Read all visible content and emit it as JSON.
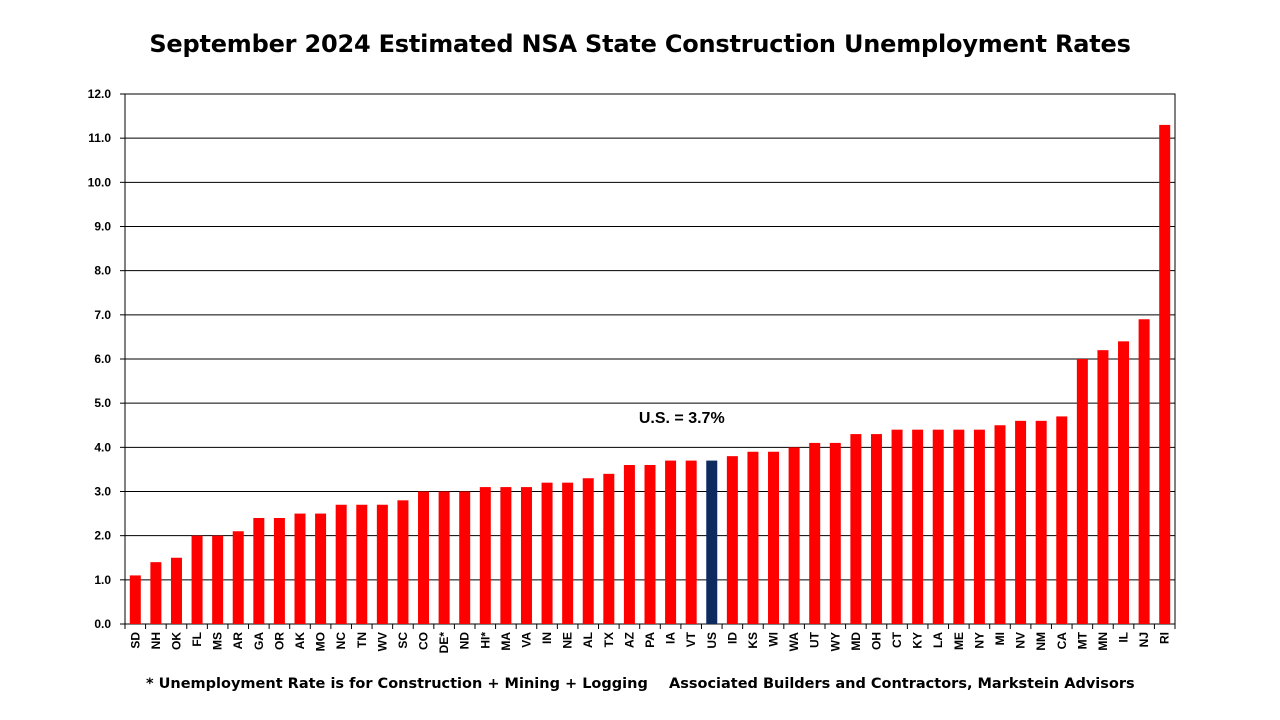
{
  "chart_data": {
    "type": "bar",
    "title": "September 2024 Estimated NSA State Construction Unemployment Rates",
    "categories": [
      "SD",
      "NH",
      "OK",
      "FL",
      "MS",
      "AR",
      "GA",
      "OR",
      "AK",
      "MO",
      "NC",
      "TN",
      "WV",
      "SC",
      "CO",
      "DE*",
      "ND",
      "HI*",
      "MA",
      "VA",
      "IN",
      "NE",
      "AL",
      "TX",
      "AZ",
      "PA",
      "IA",
      "VT",
      "US",
      "ID",
      "KS",
      "WI",
      "WA",
      "UT",
      "WY",
      "MD",
      "OH",
      "CT",
      "KY",
      "LA",
      "ME",
      "NY",
      "MI",
      "NV",
      "NM",
      "CA",
      "MT",
      "MN",
      "IL",
      "NJ",
      "RI"
    ],
    "values": [
      1.1,
      1.4,
      1.5,
      2.0,
      2.0,
      2.1,
      2.4,
      2.4,
      2.5,
      2.5,
      2.7,
      2.7,
      2.7,
      2.8,
      3.0,
      3.0,
      3.0,
      3.1,
      3.1,
      3.1,
      3.2,
      3.2,
      3.3,
      3.4,
      3.6,
      3.6,
      3.7,
      3.7,
      3.7,
      3.8,
      3.9,
      3.9,
      4.0,
      4.1,
      4.1,
      4.3,
      4.3,
      4.4,
      4.4,
      4.4,
      4.4,
      4.4,
      4.5,
      4.6,
      4.6,
      4.7,
      6.0,
      6.2,
      6.4,
      6.9,
      11.3
    ],
    "highlight_category": "US",
    "colors": {
      "bar": "#ff0000",
      "highlight": "#0f2a5f",
      "grid": "#000000"
    },
    "ylim": [
      0,
      12
    ],
    "yticks": [
      "0.0",
      "1.0",
      "2.0",
      "3.0",
      "4.0",
      "5.0",
      "6.0",
      "7.0",
      "8.0",
      "9.0",
      "10.0",
      "11.0",
      "12.0"
    ],
    "grid": true,
    "annotation": "U.S. = 3.7%",
    "xlabel": "",
    "ylabel": ""
  },
  "footer": {
    "footnote": "* Unemployment Rate is for Construction + Mining + Logging",
    "source": "Associated Builders and Contractors, Markstein Advisors"
  }
}
